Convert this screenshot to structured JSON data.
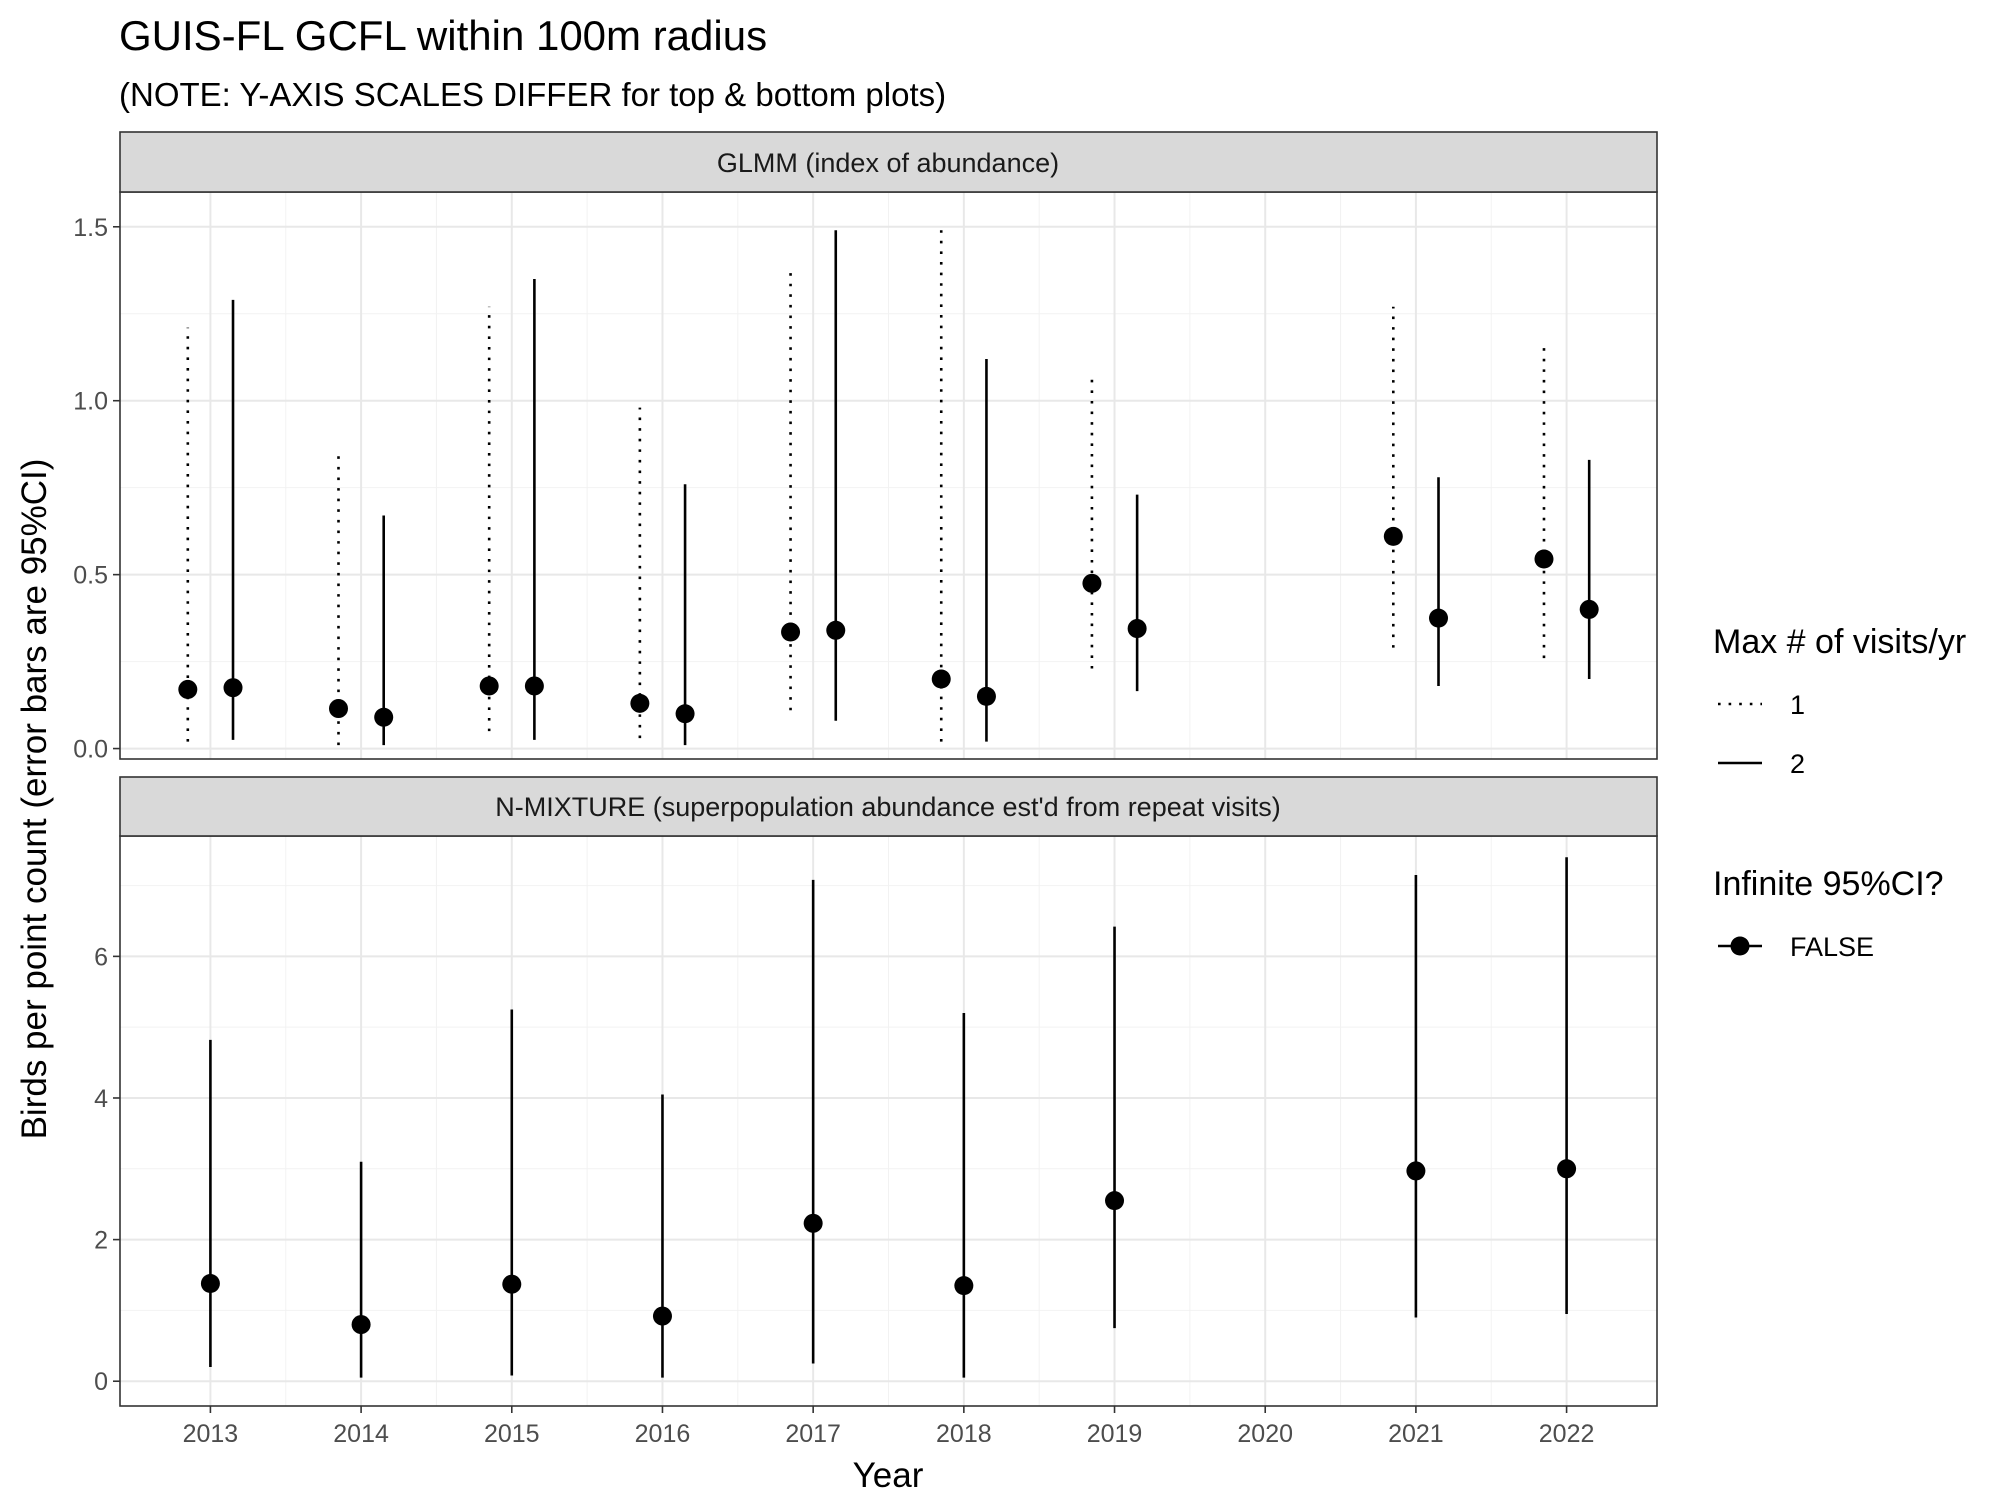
{
  "chart_data": {
    "type": "scatter",
    "title": "GUIS-FL GCFL within 100m radius",
    "subtitle": "(NOTE: Y-AXIS SCALES DIFFER for top & bottom plots)",
    "xlabel": "Year",
    "ylabel": "Birds per point count (error bars are 95%CI)",
    "x_ticks": [
      "2013",
      "2014",
      "2015",
      "2016",
      "2017",
      "2018",
      "2019",
      "2020",
      "2021",
      "2022"
    ],
    "grid": true,
    "legend_position": "right",
    "legend": {
      "linetype_title": "Max # of visits/yr",
      "linetype_entries": [
        {
          "label": "1",
          "linetype": "dotted"
        },
        {
          "label": "2",
          "linetype": "solid"
        }
      ],
      "point_title": "Infinite 95%CI?",
      "point_entries": [
        {
          "label": "FALSE"
        }
      ]
    },
    "panels": [
      {
        "strip": "GLMM (index of abundance)",
        "ylim": [
          -0.03,
          1.6
        ],
        "y_ticks": [
          0.0,
          0.5,
          1.0,
          1.5
        ],
        "y_tick_labels": [
          "0.0",
          "0.5",
          "1.0",
          "1.5"
        ],
        "series": [
          {
            "name": "1",
            "linetype": "dotted",
            "points": [
              {
                "year": 2013,
                "est": 0.17,
                "lo": 0.02,
                "hi": 1.21
              },
              {
                "year": 2014,
                "est": 0.115,
                "lo": 0.01,
                "hi": 0.86
              },
              {
                "year": 2015,
                "est": 0.18,
                "lo": 0.05,
                "hi": 1.27
              },
              {
                "year": 2016,
                "est": 0.13,
                "lo": 0.03,
                "hi": 0.98
              },
              {
                "year": 2017,
                "est": 0.335,
                "lo": 0.11,
                "hi": 1.37
              },
              {
                "year": 2018,
                "est": 0.2,
                "lo": 0.02,
                "hi": 1.49
              },
              {
                "year": 2019,
                "est": 0.475,
                "lo": 0.23,
                "hi": 1.07
              },
              {
                "year": 2021,
                "est": 0.61,
                "lo": 0.29,
                "hi": 1.27
              },
              {
                "year": 2022,
                "est": 0.545,
                "lo": 0.26,
                "hi": 1.17
              }
            ]
          },
          {
            "name": "2",
            "linetype": "solid",
            "points": [
              {
                "year": 2013,
                "est": 0.175,
                "lo": 0.025,
                "hi": 1.29
              },
              {
                "year": 2014,
                "est": 0.09,
                "lo": 0.01,
                "hi": 0.67
              },
              {
                "year": 2015,
                "est": 0.18,
                "lo": 0.025,
                "hi": 1.35
              },
              {
                "year": 2016,
                "est": 0.1,
                "lo": 0.01,
                "hi": 0.76
              },
              {
                "year": 2017,
                "est": 0.34,
                "lo": 0.08,
                "hi": 1.49
              },
              {
                "year": 2018,
                "est": 0.15,
                "lo": 0.02,
                "hi": 1.12
              },
              {
                "year": 2019,
                "est": 0.345,
                "lo": 0.165,
                "hi": 0.73
              },
              {
                "year": 2021,
                "est": 0.375,
                "lo": 0.18,
                "hi": 0.78
              },
              {
                "year": 2022,
                "est": 0.4,
                "lo": 0.2,
                "hi": 0.83
              }
            ]
          }
        ]
      },
      {
        "strip": "N-MIXTURE (superpopulation abundance est'd from repeat visits)",
        "ylim": [
          -0.35,
          7.7
        ],
        "y_ticks": [
          0,
          2,
          4,
          6
        ],
        "y_tick_labels": [
          "0",
          "2",
          "4",
          "6"
        ],
        "series": [
          {
            "name": "2",
            "linetype": "solid",
            "points": [
              {
                "year": 2013,
                "est": 1.38,
                "lo": 0.2,
                "hi": 4.82
              },
              {
                "year": 2014,
                "est": 0.8,
                "lo": 0.05,
                "hi": 3.1
              },
              {
                "year": 2015,
                "est": 1.37,
                "lo": 0.08,
                "hi": 5.25
              },
              {
                "year": 2016,
                "est": 0.92,
                "lo": 0.05,
                "hi": 4.05
              },
              {
                "year": 2017,
                "est": 2.23,
                "lo": 0.25,
                "hi": 7.08
              },
              {
                "year": 2018,
                "est": 1.35,
                "lo": 0.05,
                "hi": 5.2
              },
              {
                "year": 2019,
                "est": 2.55,
                "lo": 0.75,
                "hi": 6.42
              },
              {
                "year": 2021,
                "est": 2.97,
                "lo": 0.9,
                "hi": 7.15
              },
              {
                "year": 2022,
                "est": 3.0,
                "lo": 0.95,
                "hi": 7.4
              }
            ]
          }
        ]
      }
    ]
  }
}
